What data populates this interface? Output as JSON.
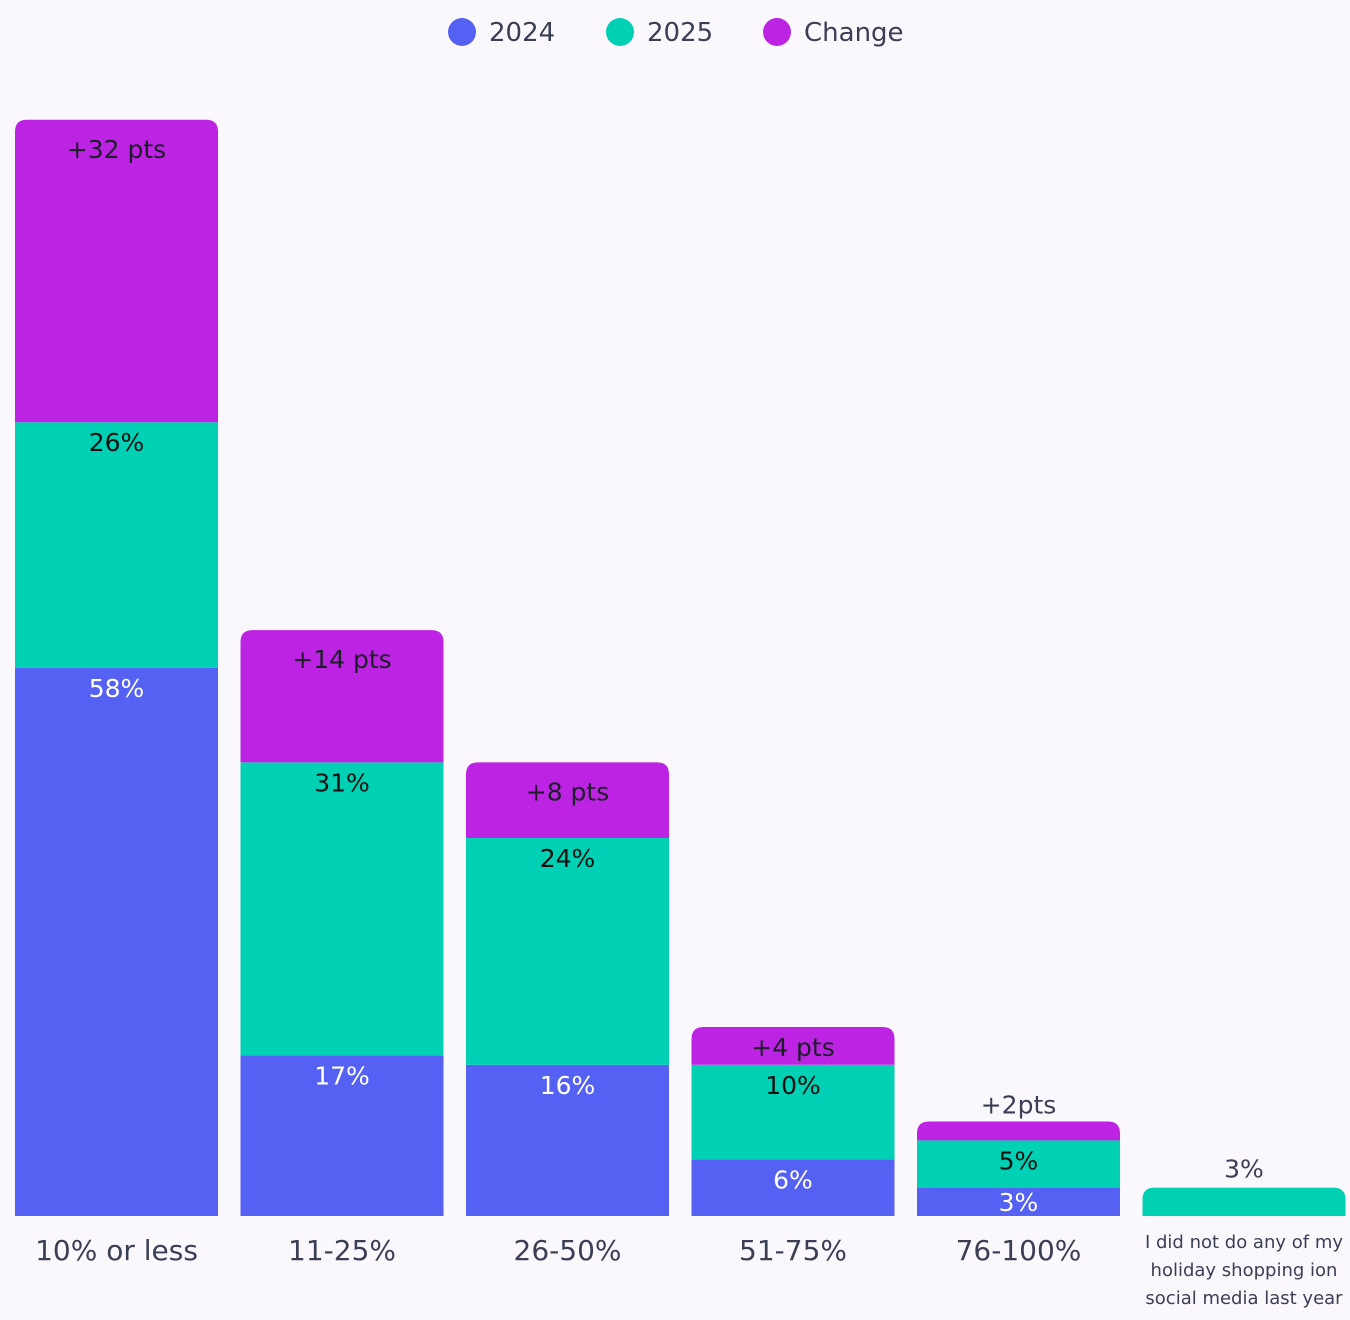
{
  "legend": [
    {
      "name": "2024",
      "color": "#5561f2"
    },
    {
      "name": "2025",
      "color": "#00d0b4"
    },
    {
      "name": "Change",
      "color": "#bd23e3"
    }
  ],
  "chart_data": {
    "type": "bar",
    "stacked": true,
    "categories": [
      "10% or less",
      "11-25%",
      "26-50%",
      "51-75%",
      "76-100%",
      "I did not do any of my holiday shopping ion social media last year"
    ],
    "series": [
      {
        "name": "2024",
        "values": [
          58,
          17,
          16,
          6,
          3,
          null
        ],
        "labels": [
          "58%",
          "17%",
          "16%",
          "6%",
          "3%",
          ""
        ]
      },
      {
        "name": "2025",
        "values": [
          26,
          31,
          24,
          10,
          5,
          3
        ],
        "labels": [
          "26%",
          "31%",
          "24%",
          "10%",
          "5%",
          "3%"
        ]
      },
      {
        "name": "Change",
        "values": [
          32,
          14,
          8,
          4,
          2,
          null
        ],
        "labels": [
          "+32 pts",
          "+14 pts",
          "+8 pts",
          "+4 pts",
          "+2pts",
          ""
        ]
      }
    ],
    "title": "",
    "xlabel": "",
    "ylabel": "",
    "ylim": [
      0,
      116
    ],
    "grid": false,
    "legend_position": "top-center",
    "colors": {
      "2024": "#5561f2",
      "2025": "#00d0b4",
      "Change": "#bd23e3"
    }
  }
}
